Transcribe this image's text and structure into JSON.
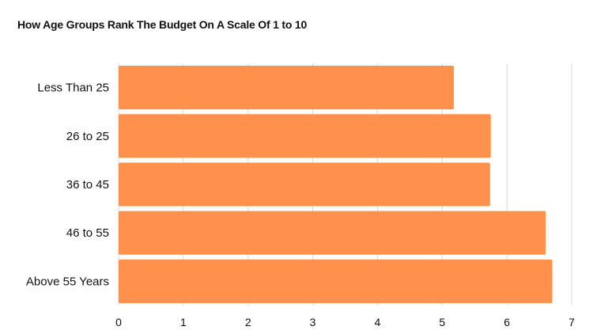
{
  "chart_data": {
    "type": "bar",
    "orientation": "horizontal",
    "title": "How Age Groups Rank The Budget On A Scale Of 1 to 10",
    "xlabel": "",
    "ylabel": "",
    "categories": [
      "Less Than 25",
      "26 to 25",
      "36 to 45",
      "46 to 55",
      "Above 55 Years"
    ],
    "values": [
      5.18,
      5.75,
      5.74,
      6.6,
      6.7
    ],
    "xlim": [
      0,
      7
    ],
    "ticks": [
      "0",
      "1",
      "2",
      "3",
      "4",
      "5",
      "6",
      "7"
    ],
    "grid": "vertical",
    "legend": "none",
    "bar_color": "#FF914D",
    "grid_color": "#d9d9d9"
  }
}
